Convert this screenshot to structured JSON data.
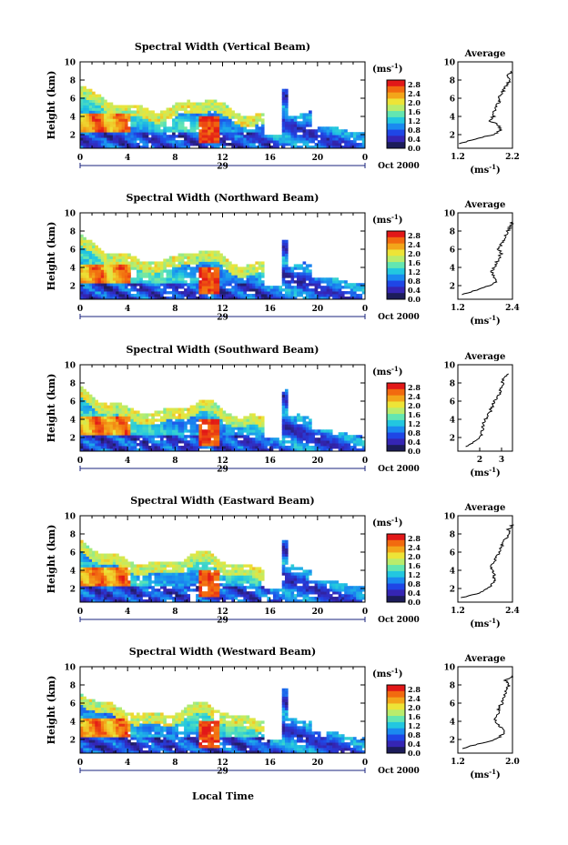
{
  "figure": {
    "xlabel_bottom": "Local Time",
    "date_label": "Oct 2000",
    "colorbar_unit": "(ms",
    "colorbar_unit_exp": "-1",
    "colorbar_unit_close": ")",
    "colorbar_ticks": [
      "2.8",
      "2.4",
      "2.0",
      "1.6",
      "1.2",
      "0.8",
      "0.4",
      "0.0"
    ],
    "colorbar_stops": [
      "#e21818",
      "#f26a0f",
      "#f3a51a",
      "#ede437",
      "#b9ec6c",
      "#63e6b1",
      "#22c7e0",
      "#1a8af0",
      "#1f46e6",
      "#3525b4",
      "#1c1c5a"
    ],
    "avg_title": "Average",
    "avg_xunit": "(ms",
    "avg_xunit_exp": "-1",
    "avg_xunit_close": ")",
    "ylabel": "Height (km)",
    "day_label": "29",
    "colors": {
      "axis": "#000000",
      "avg_line": "#000000",
      "day_arrow": "#1a237e"
    }
  },
  "chart_data": [
    {
      "type": "heatmap",
      "title": "Spectral Width (Vertical Beam)",
      "ylabel": "Height (km)",
      "x_ticks": [
        "0",
        "4",
        "8",
        "12",
        "16",
        "20",
        "0"
      ],
      "y_ticks": [
        "10",
        "8",
        "6",
        "4",
        "2"
      ],
      "xlim": [
        0,
        24
      ],
      "ylim": [
        0.5,
        10
      ],
      "colorbar_range": [
        0.0,
        3.0
      ],
      "average": {
        "title": "Average",
        "x_ticks": [
          "1.2",
          "2.2"
        ],
        "xlim": [
          1.2,
          2.2
        ],
        "heights": [
          1.0,
          1.5,
          2.0,
          2.5,
          3.0,
          3.5,
          4.0,
          4.5,
          5.0,
          5.5,
          6.0,
          6.5,
          7.0,
          7.5,
          8.0,
          8.5,
          9.0
        ],
        "values": [
          1.25,
          1.5,
          1.85,
          2.0,
          1.95,
          1.8,
          1.85,
          1.85,
          1.9,
          1.95,
          1.95,
          2.0,
          2.05,
          2.1,
          2.15,
          2.1,
          2.2
        ]
      }
    },
    {
      "type": "heatmap",
      "title": "Spectral Width (Northward Beam)",
      "ylabel": "Height (km)",
      "x_ticks": [
        "0",
        "4",
        "8",
        "12",
        "16",
        "20",
        "0"
      ],
      "y_ticks": [
        "10",
        "8",
        "6",
        "4",
        "2"
      ],
      "xlim": [
        0,
        24
      ],
      "ylim": [
        0.5,
        10
      ],
      "colorbar_range": [
        0.0,
        3.0
      ],
      "average": {
        "title": "Average",
        "x_ticks": [
          "1.2",
          "2.4"
        ],
        "xlim": [
          1.2,
          2.4
        ],
        "heights": [
          1.0,
          1.5,
          2.0,
          2.5,
          3.0,
          3.5,
          4.0,
          4.5,
          5.0,
          5.5,
          6.0,
          6.5,
          7.0,
          7.5,
          8.0,
          8.5,
          9.0
        ],
        "values": [
          1.3,
          1.6,
          1.9,
          2.05,
          2.0,
          1.95,
          2.0,
          2.05,
          2.1,
          2.15,
          2.1,
          2.15,
          2.2,
          2.25,
          2.3,
          2.35,
          2.4
        ]
      }
    },
    {
      "type": "heatmap",
      "title": "Spectral Width (Southward Beam)",
      "ylabel": "Height (km)",
      "x_ticks": [
        "0",
        "4",
        "8",
        "12",
        "16",
        "20",
        "0"
      ],
      "y_ticks": [
        "10",
        "8",
        "6",
        "4",
        "2"
      ],
      "xlim": [
        0,
        24
      ],
      "ylim": [
        0.5,
        10
      ],
      "colorbar_range": [
        0.0,
        3.0
      ],
      "average": {
        "title": "Average",
        "x_ticks": [
          "2",
          "3"
        ],
        "xlim": [
          1.0,
          3.5
        ],
        "heights": [
          1.0,
          1.5,
          2.0,
          2.5,
          3.0,
          3.5,
          4.0,
          4.5,
          5.0,
          5.5,
          6.0,
          6.5,
          7.0,
          7.5,
          8.0,
          8.5,
          9.0
        ],
        "values": [
          1.4,
          1.7,
          2.0,
          2.1,
          2.15,
          2.15,
          2.25,
          2.4,
          2.5,
          2.6,
          2.7,
          2.8,
          2.95,
          3.0,
          3.05,
          3.1,
          3.3
        ]
      }
    },
    {
      "type": "heatmap",
      "title": "Spectral Width (Eastward Beam)",
      "ylabel": "Height (km)",
      "x_ticks": [
        "0",
        "4",
        "8",
        "12",
        "16",
        "20",
        "0"
      ],
      "y_ticks": [
        "10",
        "8",
        "6",
        "4",
        "2"
      ],
      "xlim": [
        0,
        24
      ],
      "ylim": [
        0.5,
        10
      ],
      "colorbar_range": [
        0.0,
        3.0
      ],
      "average": {
        "title": "Average",
        "x_ticks": [
          "1.2",
          "2.4"
        ],
        "xlim": [
          1.2,
          2.4
        ],
        "heights": [
          1.0,
          1.5,
          2.0,
          2.5,
          3.0,
          3.5,
          4.0,
          4.5,
          5.0,
          5.5,
          6.0,
          6.5,
          7.0,
          7.5,
          8.0,
          8.5,
          9.0
        ],
        "values": [
          1.3,
          1.65,
          1.85,
          1.95,
          2.0,
          2.0,
          1.95,
          1.95,
          2.0,
          2.05,
          2.1,
          2.15,
          2.2,
          2.25,
          2.35,
          2.3,
          2.4
        ]
      }
    },
    {
      "type": "heatmap",
      "title": "Spectral Width (Westward Beam)",
      "ylabel": "Height (km)",
      "x_ticks": [
        "0",
        "4",
        "8",
        "12",
        "16",
        "20",
        "0"
      ],
      "y_ticks": [
        "10",
        "8",
        "6",
        "4",
        "2"
      ],
      "xlim": [
        0,
        24
      ],
      "ylim": [
        0.5,
        10
      ],
      "colorbar_range": [
        0.0,
        3.0
      ],
      "average": {
        "title": "Average",
        "x_ticks": [
          "1.2",
          "2.0"
        ],
        "xlim": [
          1.2,
          2.0
        ],
        "heights": [
          1.0,
          1.5,
          2.0,
          2.5,
          3.0,
          3.5,
          4.0,
          4.5,
          5.0,
          5.5,
          6.0,
          6.5,
          7.0,
          7.5,
          8.0,
          8.5,
          9.0
        ],
        "values": [
          1.25,
          1.5,
          1.75,
          1.85,
          1.9,
          1.8,
          1.75,
          1.75,
          1.8,
          1.8,
          1.85,
          1.85,
          1.9,
          1.9,
          1.95,
          1.9,
          2.0
        ]
      }
    }
  ]
}
